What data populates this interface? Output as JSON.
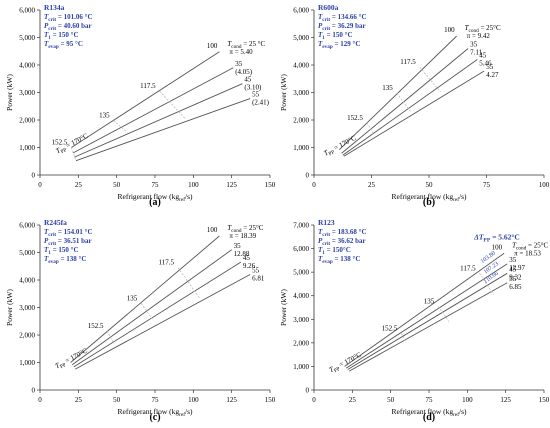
{
  "chart_data": [
    {
      "type": "line",
      "panel": "(a)",
      "fluid": "R134a",
      "info": [
        "T_crit = 101.06 °C",
        "P_crit = 40.60 bar",
        "T_1 = 150 °C",
        "T_evap = 95 °C"
      ],
      "xlabel": "Refrigerant flow (kg_ref/s)",
      "ylabel": "Power (kW)",
      "xlim": [
        0,
        150
      ],
      "ylim": [
        0,
        6000
      ],
      "xticks": [
        "0",
        "25",
        "50",
        "75",
        "100",
        "125",
        "150"
      ],
      "yticks": [
        "0",
        "1,000",
        "2,000",
        "3,000",
        "4,000",
        "5,000",
        "6,000"
      ],
      "series": [
        {
          "name": "100",
          "x": [
            20.5,
            117
          ],
          "y": [
            1000,
            4480
          ]
        },
        {
          "name": "35",
          "x": [
            21.5,
            126
          ],
          "y": [
            800,
            3900
          ]
        },
        {
          "name": "45",
          "x": [
            22.5,
            132
          ],
          "y": [
            650,
            3320
          ]
        },
        {
          "name": "55",
          "x": [
            23.5,
            137
          ],
          "y": [
            520,
            2780
          ]
        }
      ],
      "isolines": [
        {
          "label": "152.5",
          "x": [
            20.5,
            23.5
          ],
          "y": [
            1000,
            520
          ]
        },
        {
          "label": "135",
          "x": [
            48,
            57
          ],
          "y": [
            1980,
            1550
          ]
        },
        {
          "label": "117.5",
          "x": [
            78,
            95
          ],
          "y": [
            3050,
            2030
          ]
        }
      ],
      "annotations": [
        "T_cond = 25 °C",
        "π = 5.40",
        "(4.05)",
        "(3.10)",
        "(2.41)",
        "T_PP = 170°C",
        "100",
        "35",
        "45",
        "55",
        "152.5",
        "135",
        "117.5"
      ]
    },
    {
      "type": "line",
      "panel": "(b)",
      "fluid": "R600a",
      "info": [
        "T_crit = 134.66 °C",
        "P_crit = 36.29 bar",
        "T_1 = 150 °C",
        "T_evap = 129 °C"
      ],
      "xlabel": "Refrigerant flow (kg_ref/s)",
      "ylabel": "Power (kW)",
      "xlim": [
        0,
        100
      ],
      "ylim": [
        0,
        6000
      ],
      "xticks": [
        "0",
        "25",
        "50",
        "75",
        "100"
      ],
      "yticks": [
        "0",
        "1,000",
        "2,000",
        "3,000",
        "4,000",
        "5,000",
        "6,000"
      ],
      "series": [
        {
          "name": "100",
          "x": [
            11,
            62
          ],
          "y": [
            920,
            5050
          ]
        },
        {
          "name": "35",
          "x": [
            12,
            67
          ],
          "y": [
            790,
            4600
          ]
        },
        {
          "name": "45",
          "x": [
            12.5,
            71
          ],
          "y": [
            720,
            4200
          ]
        },
        {
          "name": "55",
          "x": [
            13,
            74
          ],
          "y": [
            680,
            3780
          ]
        }
      ],
      "isolines": [
        {
          "label": "152.5",
          "x": [
            23,
            26
          ],
          "y": [
            1900,
            1500
          ]
        },
        {
          "label": "135",
          "x": [
            36,
            42
          ],
          "y": [
            2980,
            2300
          ]
        },
        {
          "label": "117.5",
          "x": [
            46,
            55
          ],
          "y": [
            3920,
            3020
          ]
        }
      ],
      "annotations": [
        "T_cond = 25°C",
        "π = 9.42",
        "7.11",
        "5.46",
        "4.27",
        "T_PP = 170°C",
        "100",
        "35",
        "45",
        "55",
        "152.5",
        "135",
        "117.5"
      ]
    },
    {
      "type": "line",
      "panel": "(c)",
      "fluid": "R245fa",
      "info": [
        "T_crit = 154.01 °C",
        "P_crit = 36.51 bar",
        "T_1 = 150 °C",
        "T_evap = 138 °C"
      ],
      "xlabel": "Refrigerant flow (kg_ref/s)",
      "ylabel": "Power (kW)",
      "xlim": [
        0,
        150
      ],
      "ylim": [
        0,
        6000
      ],
      "xticks": [
        "0",
        "25",
        "50",
        "75",
        "100",
        "125",
        "150"
      ],
      "yticks": [
        "0",
        "1,000",
        "2,000",
        "3,000",
        "4,000",
        "5,000",
        "6,000"
      ],
      "series": [
        {
          "name": "100",
          "x": [
            20,
            117
          ],
          "y": [
            1000,
            5600
          ]
        },
        {
          "name": "35",
          "x": [
            21,
            125
          ],
          "y": [
            920,
            5100
          ]
        },
        {
          "name": "45",
          "x": [
            22,
            131
          ],
          "y": [
            840,
            4650
          ]
        },
        {
          "name": "55",
          "x": [
            23,
            137
          ],
          "y": [
            760,
            4200
          ]
        }
      ],
      "isolines": [
        {
          "label": "152.5",
          "x": [
            44,
            48
          ],
          "y": [
            2150,
            1680
          ]
        },
        {
          "label": "135",
          "x": [
            66,
            74
          ],
          "y": [
            3150,
            2520
          ]
        },
        {
          "label": "117.5",
          "x": [
            90,
            104
          ],
          "y": [
            4450,
            3350
          ]
        }
      ],
      "annotations": [
        "T_cond = 25°C",
        "π = 18.39",
        "12.88",
        "9.26",
        "6.81",
        "T_PP = 170°C",
        "100",
        "35",
        "45",
        "55",
        "152.5",
        "135",
        "117.5"
      ]
    },
    {
      "type": "line",
      "panel": "(d)",
      "fluid": "R123",
      "info": [
        "T_crit = 183.68 °C",
        "P_crit = 36.62 bar",
        "T_1 = 150°C",
        "T_evap = 138 °C"
      ],
      "xlabel": "Refrigerant flow (kg_ref/s)",
      "ylabel": "Power (kW)",
      "xlim": [
        0,
        150
      ],
      "ylim": [
        0,
        7000
      ],
      "xticks": [
        "0",
        "25",
        "50",
        "75",
        "100",
        "125",
        "150"
      ],
      "yticks": [
        "0",
        "1,000",
        "2,000",
        "3,000",
        "4,000",
        "5,000",
        "6,000",
        "7,000"
      ],
      "series": [
        {
          "name": "100",
          "x": [
            20,
            124
          ],
          "y": [
            1000,
            5800
          ]
        },
        {
          "name": "35",
          "x": [
            21,
            126
          ],
          "y": [
            930,
            5350
          ]
        },
        {
          "name": "45",
          "x": [
            22,
            126
          ],
          "y": [
            870,
            4950
          ]
        },
        {
          "name": "55",
          "x": [
            23,
            126
          ],
          "y": [
            800,
            4550
          ]
        }
      ],
      "isolines": [
        {
          "label": "152.5",
          "x": [
            57,
            60
          ],
          "y": [
            2400,
            2050
          ]
        },
        {
          "label": "135",
          "x": [
            81,
            88
          ],
          "y": [
            3550,
            2900
          ]
        },
        {
          "label": "117.5",
          "x": [
            108,
            117
          ],
          "y": [
            4950,
            4050
          ]
        }
      ],
      "annotations": [
        "ΔT_PP = 5.62°C",
        "T_cond = 25°C",
        "π = 18.53",
        "12.97",
        "9.32",
        "6.85",
        "103.80",
        "107.23",
        "110.66",
        "T_PP = 170°C",
        "100",
        "35",
        "45",
        "55",
        "152.5",
        "135",
        "117.5"
      ]
    }
  ]
}
